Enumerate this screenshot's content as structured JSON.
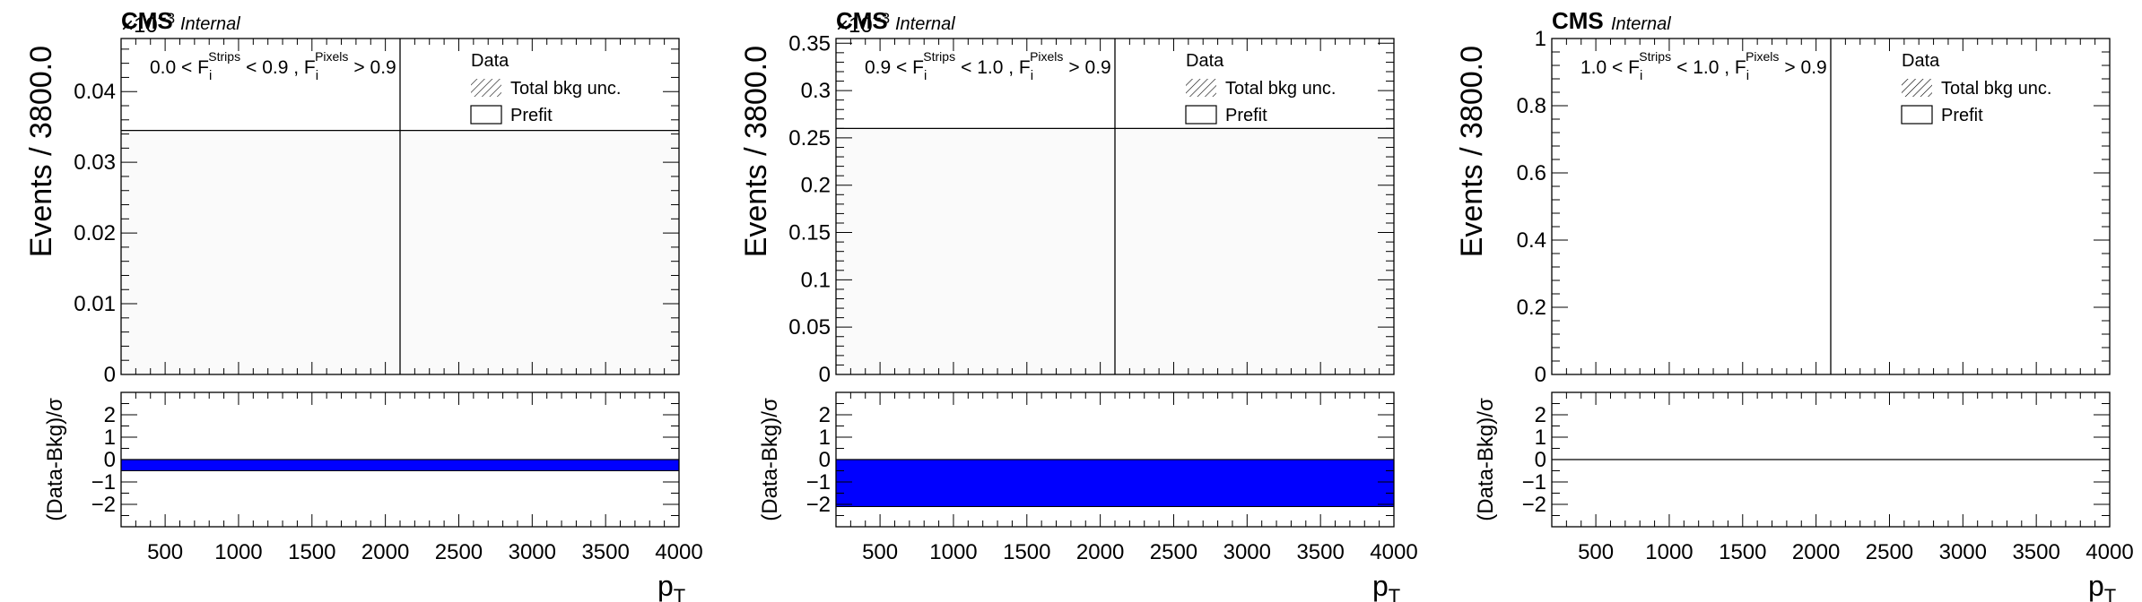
{
  "chart_data": [
    {
      "type": "histogram",
      "cms_label": "CMS",
      "cms_sublabel": "Internal",
      "multiplier": "×10",
      "multiplier_exp": "−3",
      "region_label": {
        "a": "0.0 < F",
        "a_sup": "Strips",
        "a_sub": "i",
        "b": "< 0.9 , F",
        "b_sup": "Pixels",
        "b_sub": "i",
        "c": "> 0.9"
      },
      "ylabel": "Events / 3800.0",
      "xlabel": "p",
      "xlabel_sub": "T",
      "xlim": [
        200,
        4000
      ],
      "ylim": [
        0,
        0.0475
      ],
      "yticks": [
        0,
        0.01,
        0.02,
        0.03,
        0.04
      ],
      "ytick_labels": [
        "0",
        "0.01",
        "0.02",
        "0.03",
        "0.04"
      ],
      "xticks": [
        500,
        1000,
        1500,
        2000,
        2500,
        3000,
        3500,
        4000
      ],
      "xtick_labels": [
        "500",
        "1000",
        "1500",
        "2000",
        "2500",
        "3000",
        "3500",
        "4000"
      ],
      "prefit": {
        "x_range": [
          200,
          4000
        ],
        "value": 0.0345
      },
      "data_points": [
        {
          "x": 2100,
          "y": 0.0345,
          "err": 0.04
        }
      ],
      "legend": [
        "Data",
        "Total bkg unc.",
        "Prefit"
      ],
      "ratio": {
        "ylabel": "(Data-Bkg)/σ",
        "ylim": [
          -3,
          3
        ],
        "yticks": [
          -2,
          -1,
          0,
          1,
          2
        ],
        "ytick_labels": [
          "−2",
          "−1",
          "0",
          "1",
          "2"
        ],
        "band": [
          -0.5,
          0
        ],
        "band_color": "#0000ff"
      }
    },
    {
      "type": "histogram",
      "cms_label": "CMS",
      "cms_sublabel": "Internal",
      "multiplier": "×10",
      "multiplier_exp": "−3",
      "region_label": {
        "a": "0.9 < F",
        "a_sup": "Strips",
        "a_sub": "i",
        "b": "< 1.0 , F",
        "b_sup": "Pixels",
        "b_sub": "i",
        "c": "> 0.9"
      },
      "ylabel": "Events / 3800.0",
      "xlabel": "p",
      "xlabel_sub": "T",
      "xlim": [
        200,
        4000
      ],
      "ylim": [
        0,
        0.355
      ],
      "yticks": [
        0,
        0.05,
        0.1,
        0.15,
        0.2,
        0.25,
        0.3,
        0.35
      ],
      "ytick_labels": [
        "0",
        "0.05",
        "0.1",
        "0.15",
        "0.2",
        "0.25",
        "0.3",
        "0.35"
      ],
      "xticks": [
        500,
        1000,
        1500,
        2000,
        2500,
        3000,
        3500,
        4000
      ],
      "xtick_labels": [
        "500",
        "1000",
        "1500",
        "2000",
        "2500",
        "3000",
        "3500",
        "4000"
      ],
      "prefit": {
        "x_range": [
          200,
          4000
        ],
        "value": 0.26
      },
      "data_points": [
        {
          "x": 2100,
          "y": 0.26,
          "err": 0.3
        }
      ],
      "legend": [
        "Data",
        "Total bkg unc.",
        "Prefit"
      ],
      "ratio": {
        "ylabel": "(Data-Bkg)/σ",
        "ylim": [
          -3,
          3
        ],
        "yticks": [
          -2,
          -1,
          0,
          1,
          2
        ],
        "ytick_labels": [
          "−2",
          "−1",
          "0",
          "1",
          "2"
        ],
        "band": [
          -2.1,
          0
        ],
        "band_color": "#0000ff"
      }
    },
    {
      "type": "histogram",
      "cms_label": "CMS",
      "cms_sublabel": "Internal",
      "multiplier": "",
      "multiplier_exp": "",
      "region_label": {
        "a": "1.0 < F",
        "a_sup": "Strips",
        "a_sub": "i",
        "b": "< 1.0 , F",
        "b_sup": "Pixels",
        "b_sub": "i",
        "c": "> 0.9"
      },
      "ylabel": "Events / 3800.0",
      "xlabel": "p",
      "xlabel_sub": "T",
      "xlim": [
        200,
        4000
      ],
      "ylim": [
        0,
        1.0
      ],
      "yticks": [
        0,
        0.2,
        0.4,
        0.6,
        0.8,
        1.0
      ],
      "ytick_labels": [
        "0",
        "0.2",
        "0.4",
        "0.6",
        "0.8",
        "1"
      ],
      "xticks": [
        500,
        1000,
        1500,
        2000,
        2500,
        3000,
        3500,
        4000
      ],
      "xtick_labels": [
        "500",
        "1000",
        "1500",
        "2000",
        "2500",
        "3000",
        "3500",
        "4000"
      ],
      "prefit": null,
      "data_points": [
        {
          "x": 2100,
          "y": 0,
          "err": 1.0
        }
      ],
      "legend": [
        "Data",
        "Total bkg unc.",
        "Prefit"
      ],
      "ratio": {
        "ylabel": "(Data-Bkg)/σ",
        "ylim": [
          -3,
          3
        ],
        "yticks": [
          -2,
          -1,
          0,
          1,
          2
        ],
        "ytick_labels": [
          "−2",
          "−1",
          "0",
          "1",
          "2"
        ],
        "band": null,
        "band_color": "#0000ff"
      }
    }
  ]
}
